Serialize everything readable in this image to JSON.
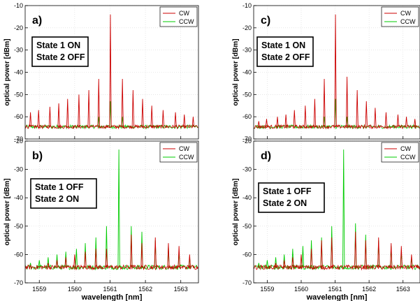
{
  "chart_data": [
    {
      "type": "line",
      "panel": "a)",
      "state_lines": [
        "State 1 ON",
        "State 2 OFF"
      ],
      "xlim": [
        1558.6,
        1563.5
      ],
      "ylim": [
        -70,
        -10
      ],
      "xticks": [
        1559,
        1560,
        1561,
        1562,
        1563
      ],
      "yticks": [
        -70,
        -60,
        -50,
        -40,
        -30,
        -20,
        -10
      ],
      "xlabel": "",
      "ylabel": "optical power [dBm]",
      "noise_floor": -64.5,
      "legend": [
        "CW",
        "CCW"
      ],
      "legend_position": "top-right",
      "series": [
        {
          "name": "CW",
          "color": "#cc0000",
          "peaks": [
            [
              1558.75,
              -58
            ],
            [
              1558.98,
              -57
            ],
            [
              1559.3,
              -55.5
            ],
            [
              1559.55,
              -54
            ],
            [
              1559.8,
              -52
            ],
            [
              1560.12,
              -50
            ],
            [
              1560.4,
              -48
            ],
            [
              1560.68,
              -43
            ],
            [
              1561.01,
              -14
            ],
            [
              1561.35,
              -43
            ],
            [
              1561.65,
              -48
            ],
            [
              1561.92,
              -52
            ],
            [
              1562.18,
              -55
            ],
            [
              1562.5,
              -57
            ],
            [
              1562.85,
              -58
            ],
            [
              1563.1,
              -59
            ],
            [
              1563.35,
              -60
            ]
          ]
        },
        {
          "name": "CCW",
          "color": "#00cc00",
          "peaks": [
            [
              1561.01,
              -53
            ],
            [
              1561.35,
              -60
            ],
            [
              1560.68,
              -60
            ]
          ]
        }
      ]
    },
    {
      "type": "line",
      "panel": "b)",
      "state_lines": [
        "State 1 OFF",
        "State 2 ON"
      ],
      "xlim": [
        1558.6,
        1563.5
      ],
      "ylim": [
        -70,
        -20
      ],
      "xticks": [
        1559,
        1560,
        1561,
        1562,
        1563
      ],
      "yticks": [
        -70,
        -60,
        -50,
        -40,
        -30,
        -20
      ],
      "xlabel": "wavelength [nm]",
      "ylabel": "optical power [dBm]",
      "noise_floor": -64.5,
      "legend": [
        "CW",
        "CCW"
      ],
      "legend_position": "top-right",
      "series": [
        {
          "name": "CW",
          "color": "#cc0000",
          "peaks": [
            [
              1559.25,
              -63
            ],
            [
              1559.5,
              -62
            ],
            [
              1559.75,
              -61
            ],
            [
              1560.0,
              -60
            ],
            [
              1560.3,
              -59
            ],
            [
              1560.6,
              -58
            ],
            [
              1560.9,
              -58
            ],
            [
              1561.6,
              -53
            ],
            [
              1561.9,
              -56
            ],
            [
              1562.28,
              -54
            ],
            [
              1562.65,
              -56
            ],
            [
              1562.95,
              -57
            ],
            [
              1563.25,
              -60
            ]
          ]
        },
        {
          "name": "CCW",
          "color": "#00cc00",
          "peaks": [
            [
              1558.75,
              -63
            ],
            [
              1559.0,
              -62
            ],
            [
              1559.25,
              -61
            ],
            [
              1559.5,
              -60
            ],
            [
              1559.75,
              -59
            ],
            [
              1560.05,
              -58
            ],
            [
              1560.3,
              -56
            ],
            [
              1560.6,
              -54
            ],
            [
              1560.9,
              -50
            ],
            [
              1561.25,
              -23
            ],
            [
              1561.6,
              -50
            ],
            [
              1561.9,
              -52
            ],
            [
              1562.28,
              -55
            ],
            [
              1562.65,
              -57
            ],
            [
              1562.95,
              -59
            ],
            [
              1563.25,
              -61
            ]
          ]
        }
      ]
    },
    {
      "type": "line",
      "panel": "c)",
      "state_lines": [
        "State 1 ON",
        "State 2 OFF"
      ],
      "xlim": [
        1558.6,
        1563.5
      ],
      "ylim": [
        -70,
        -10
      ],
      "xticks": [
        1559,
        1560,
        1561,
        1562,
        1563
      ],
      "yticks": [
        -70,
        -60,
        -50,
        -40,
        -30,
        -20,
        -10
      ],
      "xlabel": "",
      "ylabel": "optical power [dBm]",
      "noise_floor": -64.5,
      "legend": [
        "CW",
        "CCW"
      ],
      "legend_position": "top-right",
      "series": [
        {
          "name": "CW",
          "color": "#cc0000",
          "peaks": [
            [
              1558.75,
              -62
            ],
            [
              1558.98,
              -61
            ],
            [
              1559.3,
              -60
            ],
            [
              1559.55,
              -59
            ],
            [
              1559.8,
              -57
            ],
            [
              1560.12,
              -55
            ],
            [
              1560.4,
              -52
            ],
            [
              1560.68,
              -43
            ],
            [
              1561.01,
              -14
            ],
            [
              1561.35,
              -42
            ],
            [
              1561.65,
              -48
            ],
            [
              1561.92,
              -53
            ],
            [
              1562.18,
              -56
            ],
            [
              1562.5,
              -58
            ],
            [
              1562.85,
              -59
            ],
            [
              1563.1,
              -60
            ],
            [
              1563.35,
              -61
            ]
          ]
        },
        {
          "name": "CCW",
          "color": "#00cc00",
          "peaks": [
            [
              1561.01,
              -52
            ],
            [
              1561.35,
              -60
            ],
            [
              1560.68,
              -60
            ]
          ]
        }
      ]
    },
    {
      "type": "line",
      "panel": "d)",
      "state_lines": [
        "State 1 OFF",
        "State 2 ON"
      ],
      "xlim": [
        1558.6,
        1563.5
      ],
      "ylim": [
        -70,
        -20
      ],
      "xticks": [
        1559,
        1560,
        1561,
        1562,
        1563
      ],
      "yticks": [
        -70,
        -60,
        -50,
        -40,
        -30,
        -20
      ],
      "xlabel": "wavelength [nm]",
      "ylabel": "optical power [dBm]",
      "noise_floor": -64.5,
      "legend": [
        "CW",
        "CCW"
      ],
      "legend_position": "top-right",
      "series": [
        {
          "name": "CW",
          "color": "#cc0000",
          "peaks": [
            [
              1559.25,
              -63
            ],
            [
              1559.5,
              -62
            ],
            [
              1559.75,
              -61
            ],
            [
              1560.0,
              -60
            ],
            [
              1560.3,
              -58
            ],
            [
              1560.6,
              -55
            ],
            [
              1560.9,
              -54
            ],
            [
              1561.6,
              -52
            ],
            [
              1561.9,
              -55
            ],
            [
              1562.28,
              -54
            ],
            [
              1562.65,
              -56
            ],
            [
              1562.95,
              -57
            ],
            [
              1563.25,
              -60
            ]
          ]
        },
        {
          "name": "CCW",
          "color": "#00cc00",
          "peaks": [
            [
              1558.75,
              -63
            ],
            [
              1559.0,
              -62
            ],
            [
              1559.25,
              -61
            ],
            [
              1559.5,
              -60
            ],
            [
              1559.75,
              -58
            ],
            [
              1560.05,
              -57
            ],
            [
              1560.3,
              -55
            ],
            [
              1560.6,
              -54
            ],
            [
              1560.9,
              -50
            ],
            [
              1561.25,
              -23
            ],
            [
              1561.6,
              -49
            ],
            [
              1561.9,
              -53
            ],
            [
              1562.28,
              -55
            ],
            [
              1562.65,
              -57
            ],
            [
              1562.95,
              -59
            ],
            [
              1563.25,
              -61
            ]
          ]
        }
      ]
    }
  ]
}
